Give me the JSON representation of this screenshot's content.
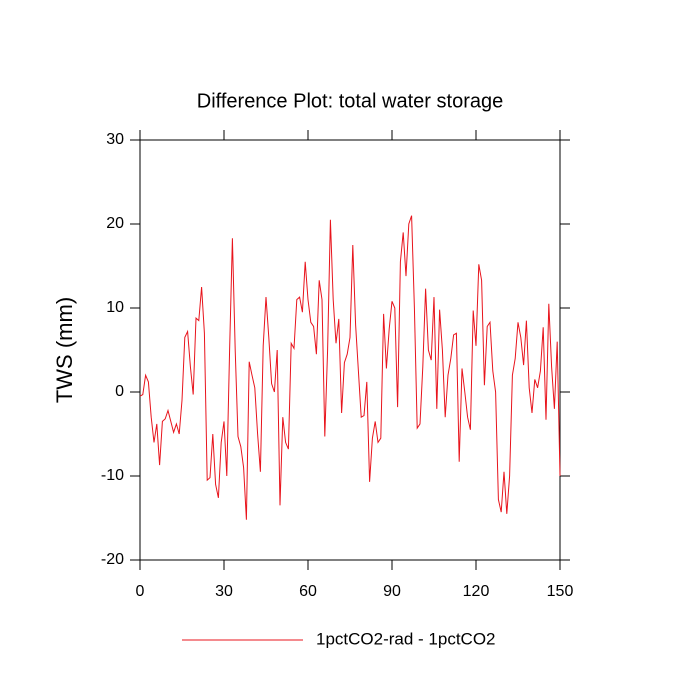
{
  "chart_data": {
    "type": "line",
    "title": "Difference Plot: total water storage",
    "ylabel": "TWS  (mm)",
    "x": [
      0,
      1,
      2,
      3,
      4,
      5,
      6,
      7,
      8,
      9,
      10,
      11,
      12,
      13,
      14,
      15,
      16,
      17,
      18,
      19,
      20,
      21,
      22,
      23,
      24,
      25,
      26,
      27,
      28,
      29,
      30,
      31,
      32,
      33,
      34,
      35,
      36,
      37,
      38,
      39,
      40,
      41,
      42,
      43,
      44,
      45,
      46,
      47,
      48,
      49,
      50,
      51,
      52,
      53,
      54,
      55,
      56,
      57,
      58,
      59,
      60,
      61,
      62,
      63,
      64,
      65,
      66,
      67,
      68,
      69,
      70,
      71,
      72,
      73,
      74,
      75,
      76,
      77,
      78,
      79,
      80,
      81,
      82,
      83,
      84,
      85,
      86,
      87,
      88,
      89,
      90,
      91,
      92,
      93,
      94,
      95,
      96,
      97,
      98,
      99,
      100,
      101,
      102,
      103,
      104,
      105,
      106,
      107,
      108,
      109,
      110,
      111,
      112,
      113,
      114,
      115,
      116,
      117,
      118,
      119,
      120,
      121,
      122,
      123,
      124,
      125,
      126,
      127,
      128,
      129,
      130,
      131,
      132,
      133,
      134,
      135,
      136,
      137,
      138,
      139,
      140,
      141,
      142,
      143,
      144,
      145,
      146,
      147,
      148,
      149,
      150
    ],
    "series": [
      {
        "name": "1pctCO2-rad - 1pctCO2",
        "color": "#e8141c",
        "values": [
          -0.5,
          -0.3,
          2,
          1.2,
          -3,
          -6,
          -3.8,
          -8.7,
          -3.5,
          -3.2,
          -2.2,
          -3.5,
          -4.8,
          -3.8,
          -5,
          -1,
          6.5,
          7.2,
          3,
          -0.3,
          8.8,
          8.5,
          12.5,
          7,
          -10.5,
          -10.2,
          -5,
          -11,
          -12.6,
          -6,
          -3.5,
          -10,
          5,
          18.3,
          5,
          -5.3,
          -6.5,
          -9,
          -15.2,
          3.6,
          2,
          0.5,
          -5,
          -9.5,
          5.5,
          11.3,
          6.5,
          1,
          0,
          5,
          -13.5,
          -3,
          -6,
          -6.8,
          5.8,
          5.2,
          11,
          11.3,
          9.5,
          15.5,
          11,
          8.3,
          7.8,
          4.5,
          13.3,
          11,
          -5.3,
          5,
          20.5,
          11,
          5.8,
          8.7,
          -2.5,
          3.5,
          4.5,
          6.5,
          17.5,
          8,
          2.5,
          -3,
          -2.8,
          1.2,
          -10.7,
          -5.5,
          -3.5,
          -6,
          -5.5,
          9.3,
          2.8,
          7.5,
          10.8,
          10,
          -1.8,
          15.5,
          19,
          13.8,
          20,
          21,
          10,
          -4.3,
          -3.8,
          3,
          12.3,
          5,
          3.8,
          11.3,
          -2,
          9.8,
          5,
          -3,
          2,
          4,
          6.8,
          7,
          -8.3,
          2.8,
          0,
          -3,
          -4.5,
          9.7,
          5.5,
          15.2,
          13.3,
          0.8,
          7.8,
          8.3,
          2.5,
          0,
          -12.8,
          -14.3,
          -9.5,
          -14.5,
          -10,
          2,
          4,
          8.3,
          6.5,
          3.2,
          8.5,
          0.5,
          -2.5,
          1.5,
          0.5,
          2.5,
          7.7,
          -3.3,
          10.5,
          3,
          -2,
          6,
          -10
        ]
      }
    ],
    "xlim": [
      0,
      150
    ],
    "xticks": [
      0,
      30,
      60,
      90,
      120,
      150
    ],
    "ylim": [
      -20,
      30
    ],
    "yticks": [
      -20,
      -10,
      0,
      10,
      20,
      30
    ]
  }
}
